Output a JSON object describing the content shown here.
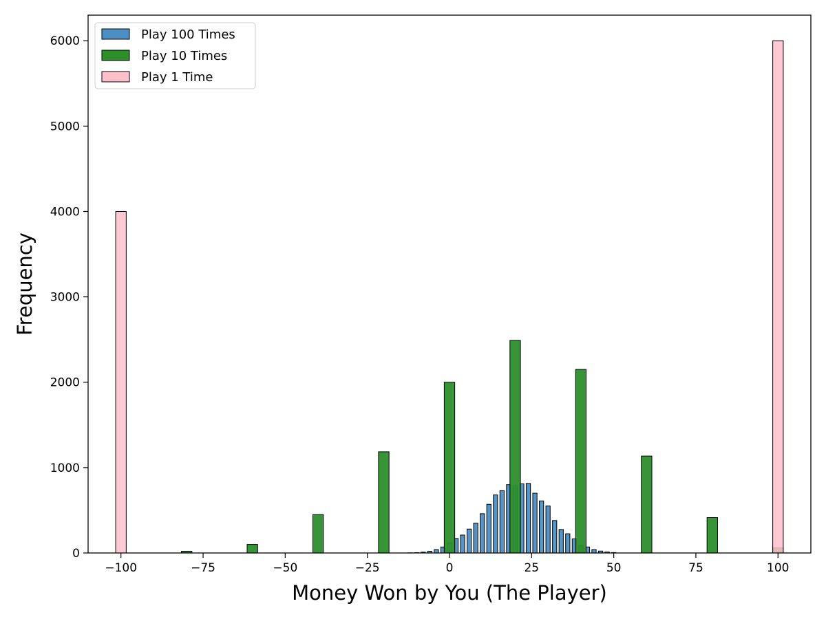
{
  "chart_data": {
    "type": "bar",
    "title": "",
    "xlabel": "Money Won by You (The Player)",
    "ylabel": "Frequency",
    "xlim": [
      -110,
      110
    ],
    "ylim": [
      0,
      6300
    ],
    "x_ticks": [
      -100,
      -75,
      -50,
      -25,
      0,
      25,
      50,
      75,
      100
    ],
    "x_tick_labels": [
      "−100",
      "−75",
      "−50",
      "−25",
      "0",
      "25",
      "50",
      "75",
      "100"
    ],
    "y_ticks": [
      0,
      1000,
      2000,
      3000,
      4000,
      5000,
      6000
    ],
    "y_tick_labels": [
      "0",
      "1000",
      "2000",
      "3000",
      "4000",
      "5000",
      "6000"
    ],
    "grid": false,
    "legend_position": "top-left",
    "legend": [
      "Play 100 Times",
      "Play 10 Times",
      "Play 1 Time"
    ],
    "series": [
      {
        "name": "Play 100 Times",
        "color": "#4d8fc2",
        "bin_width": 1.3,
        "x": [
          -12,
          -10,
          -8,
          -6,
          -4,
          -2,
          0,
          2,
          4,
          6,
          8,
          10,
          12,
          14,
          16,
          18,
          20,
          22,
          24,
          26,
          28,
          30,
          32,
          34,
          36,
          38,
          40,
          42,
          44,
          46,
          48,
          50
        ],
        "values": [
          2,
          4,
          10,
          20,
          40,
          70,
          120,
          170,
          210,
          280,
          350,
          460,
          570,
          680,
          730,
          800,
          790,
          810,
          815,
          700,
          610,
          550,
          380,
          275,
          225,
          165,
          90,
          70,
          40,
          22,
          12,
          5
        ]
      },
      {
        "name": "Play 10 Times",
        "color": "#2c8f2c",
        "bin_width": 3.2,
        "x": [
          -80,
          -60,
          -40,
          -20,
          0,
          20,
          40,
          60,
          80,
          100
        ],
        "values": [
          20,
          100,
          450,
          1185,
          2000,
          2490,
          2150,
          1135,
          415,
          60
        ]
      },
      {
        "name": "Play 1 Time",
        "color": "#ffc0cb",
        "bin_width": 3.2,
        "x": [
          -100,
          100
        ],
        "values": [
          4000,
          6000
        ]
      }
    ]
  }
}
